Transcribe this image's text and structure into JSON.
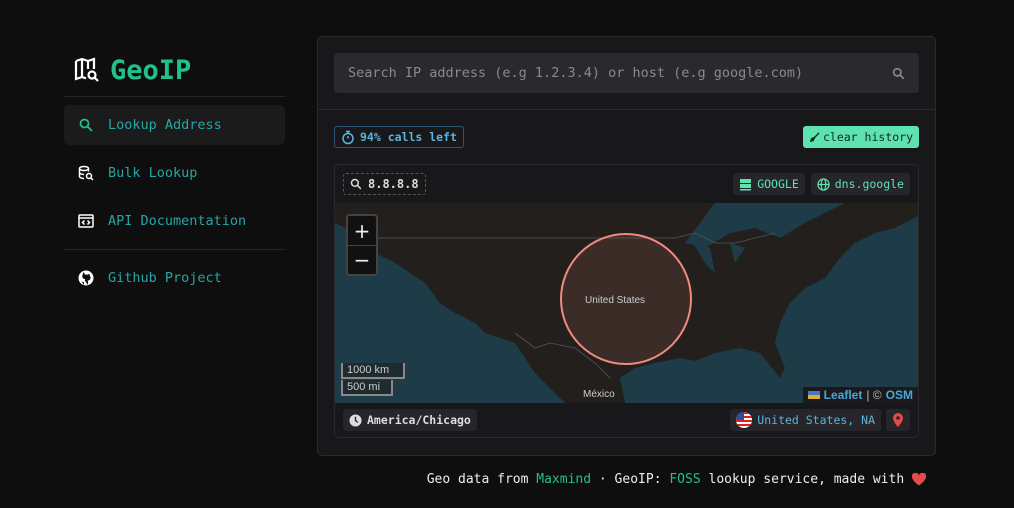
{
  "sidebar": {
    "logo": "GeoIP",
    "items": [
      {
        "label": "Lookup Address",
        "icon": "search-icon",
        "active": true
      },
      {
        "label": "Bulk Lookup",
        "icon": "database-search-icon"
      },
      {
        "label": "API Documentation",
        "icon": "code-window-icon"
      },
      {
        "label": "Github Project",
        "icon": "github-icon"
      }
    ]
  },
  "search": {
    "placeholder": "Search IP address (e.g 1.2.3.4) or host (e.g google.com)",
    "value": ""
  },
  "status": {
    "calls_left": "94% calls left",
    "clear_label": "clear history"
  },
  "result": {
    "ip": "8.8.8.8",
    "org": "GOOGLE",
    "host": "dns.google",
    "timezone": "America/Chicago",
    "location": "United States, NA",
    "map": {
      "label_country": "United States",
      "label_mexico": "México",
      "scale_km": "1000 km",
      "scale_mi": "500 mi",
      "attr_leaflet": "Leaflet",
      "attr_sep": "| ©",
      "attr_osm": "OSM",
      "zoom_in": "+",
      "zoom_out": "−",
      "circle_color": "#f08a7e"
    }
  },
  "footer": {
    "t1": "Geo data from ",
    "maxmind": "Maxmind",
    "t2": " · GeoIP: ",
    "foss": "FOSS",
    "t3": " lookup service, made with "
  },
  "colors": {
    "accent": "#22c08a",
    "nav": "#26a6a6",
    "clear_bg": "#5ee3b0",
    "heart": "#e84a4a"
  }
}
